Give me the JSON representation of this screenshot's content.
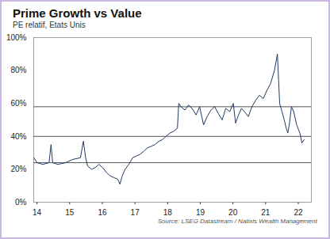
{
  "chart_data": {
    "type": "line",
    "title": "Prime Growth vs Value",
    "subtitle": "PE relatif, Etats Unis",
    "source": "Source: LSEG Datastream / Natixis Wealth Management",
    "color": "#1f3864",
    "grid": false,
    "x": [
      2013.91,
      2014.0,
      2014.18,
      2014.37,
      2014.43,
      2014.48,
      2014.64,
      2014.87,
      2015.1,
      2015.33,
      2015.42,
      2015.49,
      2015.55,
      2015.67,
      2015.78,
      2015.9,
      2016.01,
      2016.13,
      2016.24,
      2016.35,
      2016.47,
      2016.54,
      2016.61,
      2016.7,
      2016.81,
      2016.93,
      2017.04,
      2017.15,
      2017.27,
      2017.38,
      2017.5,
      2017.61,
      2017.73,
      2017.84,
      2017.95,
      2018.07,
      2018.18,
      2018.3,
      2018.34,
      2018.41,
      2018.53,
      2018.64,
      2018.75,
      2018.87,
      2018.98,
      2019.1,
      2019.21,
      2019.33,
      2019.44,
      2019.55,
      2019.67,
      2019.78,
      2019.9,
      2020.01,
      2020.08,
      2020.17,
      2020.26,
      2020.35,
      2020.47,
      2020.58,
      2020.7,
      2020.81,
      2020.93,
      2021.04,
      2021.15,
      2021.27,
      2021.36,
      2021.43,
      2021.5,
      2021.57,
      2021.63,
      2021.68,
      2021.73,
      2021.79,
      2021.86,
      2021.95,
      2022.05,
      2022.11,
      2022.18
    ],
    "values": [
      27,
      24,
      23,
      24,
      35,
      24,
      23,
      24,
      26,
      27,
      37,
      27,
      22,
      20,
      21,
      23,
      21,
      18,
      16,
      15,
      14,
      11,
      16,
      20,
      23,
      27,
      28,
      29,
      31,
      33,
      34,
      35,
      37,
      38,
      40,
      42,
      43,
      45,
      60,
      58,
      56,
      59,
      57,
      53,
      58,
      47,
      52,
      56,
      58,
      54,
      50,
      57,
      55,
      60,
      48,
      53,
      57,
      55,
      52,
      58,
      62,
      65,
      63,
      68,
      72,
      80,
      90,
      60,
      55,
      50,
      45,
      42,
      48,
      58,
      55,
      47,
      42,
      36,
      38
    ],
    "reference_lines": [
      24,
      40,
      58
    ],
    "xlim": [
      2013.9,
      2022.4
    ],
    "xticks": [
      {
        "value": 2014,
        "label": "14"
      },
      {
        "value": 2015,
        "label": "15"
      },
      {
        "value": 2016,
        "label": "16"
      },
      {
        "value": 2017,
        "label": "17"
      },
      {
        "value": 2018,
        "label": "18"
      },
      {
        "value": 2019,
        "label": "19"
      },
      {
        "value": 2020,
        "label": "20"
      },
      {
        "value": 2021,
        "label": "21"
      },
      {
        "value": 2022,
        "label": "22"
      }
    ],
    "ylim": [
      0,
      100
    ],
    "yticks": [
      {
        "value": 0,
        "label": "0%"
      },
      {
        "value": 20,
        "label": "20%"
      },
      {
        "value": 40,
        "label": "40%"
      },
      {
        "value": 60,
        "label": "60%"
      },
      {
        "value": 80,
        "label": "80%"
      },
      {
        "value": 100,
        "label": "100%"
      }
    ]
  }
}
